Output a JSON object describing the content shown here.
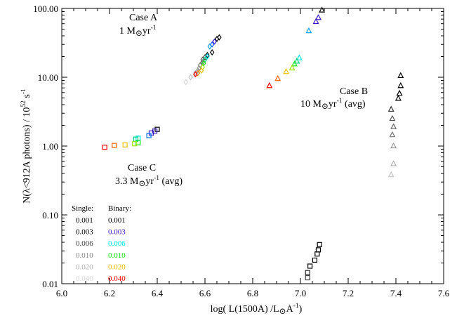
{
  "chart_data": {
    "type": "scatter",
    "xlabel_parts": [
      "log( L(1500A) /L",
      "⊙",
      "A",
      "-1",
      ")"
    ],
    "ylabel_parts": [
      "N(λ<912A photons) / 10",
      "52",
      " s",
      "-1"
    ],
    "xlim": [
      6.0,
      7.6
    ],
    "ylim": [
      0.01,
      100.0
    ],
    "yscale": "log",
    "grid": false,
    "x_ticks": [
      6.0,
      6.2,
      6.4,
      6.6,
      6.8,
      7.0,
      7.2,
      7.4,
      7.6
    ],
    "x_tick_labels": [
      "6.0",
      "6.2",
      "6.4",
      "6.6",
      "6.8",
      "7.0",
      "7.2",
      "7.4",
      "7.6"
    ],
    "y_ticks": [
      0.01,
      0.1,
      1.0,
      10.0,
      100.0
    ],
    "y_tick_labels": [
      "0.01",
      "0.10",
      "1.00",
      "10.00",
      "100.00"
    ],
    "annotations": [
      {
        "id": "case-a",
        "line1": "Case A",
        "line2_parts": [
          "1 M",
          "⊙",
          "yr",
          "-1",
          ""
        ]
      },
      {
        "id": "case-b",
        "line1": "Case B",
        "line2_parts": [
          "10 M",
          "⊙",
          "yr",
          "-1",
          " (avg)"
        ]
      },
      {
        "id": "case-c",
        "line1": "Case C",
        "line2_parts": [
          "3.3 M",
          "⊙",
          "yr",
          "-1",
          " (avg)"
        ]
      }
    ],
    "legend": {
      "position": "lower-left",
      "headers": [
        "Single:",
        "Binary:"
      ],
      "rows": [
        {
          "single": "0.001",
          "binary": "0.001",
          "single_color": "#000000",
          "binary_color": "#000000"
        },
        {
          "single": "0.003",
          "binary": "0.003",
          "single_color": "#000000",
          "binary_color": "#3a18c8"
        },
        {
          "single": "0.006",
          "binary": "0.006",
          "single_color": "#444444",
          "binary_color": "#00e8f0"
        },
        {
          "single": "0.010",
          "binary": "0.010",
          "single_color": "#888888",
          "binary_color": "#18e818"
        },
        {
          "single": "0.020",
          "binary": "0.020",
          "single_color": "#b0b0b0",
          "binary_color": "#f0c000"
        },
        {
          "single": "0.040",
          "binary": "0.040",
          "single_color": "#d6d6d6",
          "binary_color": "#ff0000"
        }
      ]
    },
    "series": [
      {
        "case": "A",
        "population": "single",
        "marker": "diamond",
        "points": [
          {
            "x": 6.66,
            "y": 38.0,
            "color": "#000000"
          },
          {
            "x": 6.63,
            "y": 23.0,
            "color": "#000000"
          },
          {
            "x": 6.61,
            "y": 21.0,
            "color": "#000000"
          },
          {
            "x": 6.6,
            "y": 19.5,
            "color": "#444444"
          },
          {
            "x": 6.59,
            "y": 18.0,
            "color": "#555555"
          },
          {
            "x": 6.59,
            "y": 16.5,
            "color": "#666666"
          },
          {
            "x": 6.58,
            "y": 15.0,
            "color": "#777777"
          },
          {
            "x": 6.575,
            "y": 13.5,
            "color": "#888888"
          },
          {
            "x": 6.57,
            "y": 12.5,
            "color": "#999999"
          },
          {
            "x": 6.56,
            "y": 11.5,
            "color": "#aaaaaa"
          },
          {
            "x": 6.54,
            "y": 10.0,
            "color": "#c0c0c0"
          },
          {
            "x": 6.52,
            "y": 8.5,
            "color": "#d6d6d6"
          }
        ]
      },
      {
        "case": "A",
        "population": "binary",
        "marker": "diamond",
        "points": [
          {
            "x": 6.65,
            "y": 36.0,
            "color": "#000000"
          },
          {
            "x": 6.64,
            "y": 33.0,
            "color": "#3a18c8"
          },
          {
            "x": 6.63,
            "y": 30.0,
            "color": "#2050ff"
          },
          {
            "x": 6.62,
            "y": 28.0,
            "color": "#00a0ff"
          },
          {
            "x": 6.61,
            "y": 20.0,
            "color": "#00e8f0"
          },
          {
            "x": 6.6,
            "y": 18.0,
            "color": "#00d080"
          },
          {
            "x": 6.595,
            "y": 16.0,
            "color": "#18e818"
          },
          {
            "x": 6.59,
            "y": 14.0,
            "color": "#a0e800"
          },
          {
            "x": 6.585,
            "y": 12.5,
            "color": "#f0c000"
          },
          {
            "x": 6.57,
            "y": 11.5,
            "color": "#ff8000"
          },
          {
            "x": 6.56,
            "y": 11.0,
            "color": "#ff0000"
          }
        ]
      },
      {
        "case": "B",
        "population": "single",
        "marker": "triangle",
        "points": [
          {
            "x": 7.42,
            "y": 10.5,
            "color": "#000000"
          },
          {
            "x": 7.42,
            "y": 7.5,
            "color": "#000000"
          },
          {
            "x": 7.415,
            "y": 5.8,
            "color": "#000000"
          },
          {
            "x": 7.41,
            "y": 4.9,
            "color": "#000000"
          },
          {
            "x": 7.38,
            "y": 3.4,
            "color": "#333333"
          },
          {
            "x": 7.385,
            "y": 2.5,
            "color": "#555555"
          },
          {
            "x": 7.39,
            "y": 1.9,
            "color": "#666666"
          },
          {
            "x": 7.385,
            "y": 1.45,
            "color": "#777777"
          },
          {
            "x": 7.39,
            "y": 1.0,
            "color": "#999999"
          },
          {
            "x": 7.39,
            "y": 0.55,
            "color": "#b0b0b0"
          },
          {
            "x": 7.38,
            "y": 0.38,
            "color": "#c8c8c8"
          }
        ]
      },
      {
        "case": "B",
        "population": "binary",
        "marker": "triangle",
        "points": [
          {
            "x": 7.09,
            "y": 94.0,
            "color": "#000000"
          },
          {
            "x": 7.075,
            "y": 73.0,
            "color": "#3a18c8"
          },
          {
            "x": 7.065,
            "y": 64.0,
            "color": "#3a18c8"
          },
          {
            "x": 7.035,
            "y": 47.0,
            "color": "#00a0ff"
          },
          {
            "x": 6.995,
            "y": 19.0,
            "color": "#00e8f0"
          },
          {
            "x": 6.985,
            "y": 17.0,
            "color": "#00d080"
          },
          {
            "x": 6.975,
            "y": 15.5,
            "color": "#18e818"
          },
          {
            "x": 6.965,
            "y": 13.5,
            "color": "#a0e800"
          },
          {
            "x": 6.94,
            "y": 12.0,
            "color": "#f0c000"
          },
          {
            "x": 6.905,
            "y": 9.5,
            "color": "#ff6000"
          },
          {
            "x": 6.87,
            "y": 7.5,
            "color": "#ff0000"
          }
        ]
      },
      {
        "case": "C",
        "population": "single",
        "marker": "square",
        "points": [
          {
            "x": 7.08,
            "y": 0.037,
            "color": "#000000"
          },
          {
            "x": 7.075,
            "y": 0.031,
            "color": "#000000"
          },
          {
            "x": 7.07,
            "y": 0.027,
            "color": "#000000"
          },
          {
            "x": 7.06,
            "y": 0.022,
            "color": "#000000"
          },
          {
            "x": 7.04,
            "y": 0.018,
            "color": "#000000"
          },
          {
            "x": 7.03,
            "y": 0.0145,
            "color": "#222222"
          },
          {
            "x": 7.03,
            "y": 0.0122,
            "color": "#444444"
          }
        ]
      },
      {
        "case": "C",
        "population": "binary",
        "marker": "square",
        "points": [
          {
            "x": 6.4,
            "y": 1.75,
            "color": "#000000"
          },
          {
            "x": 6.39,
            "y": 1.65,
            "color": "#3a18c8"
          },
          {
            "x": 6.375,
            "y": 1.55,
            "color": "#3a18c8"
          },
          {
            "x": 6.365,
            "y": 1.42,
            "color": "#0070ff"
          },
          {
            "x": 6.32,
            "y": 1.3,
            "color": "#00e8f0"
          },
          {
            "x": 6.31,
            "y": 1.26,
            "color": "#00d080"
          },
          {
            "x": 6.32,
            "y": 1.12,
            "color": "#18e818"
          },
          {
            "x": 6.305,
            "y": 1.08,
            "color": "#a0e800"
          },
          {
            "x": 6.265,
            "y": 1.04,
            "color": "#f0c000"
          },
          {
            "x": 6.22,
            "y": 1.02,
            "color": "#ff6000"
          },
          {
            "x": 6.18,
            "y": 0.96,
            "color": "#ff0000"
          }
        ]
      }
    ]
  }
}
